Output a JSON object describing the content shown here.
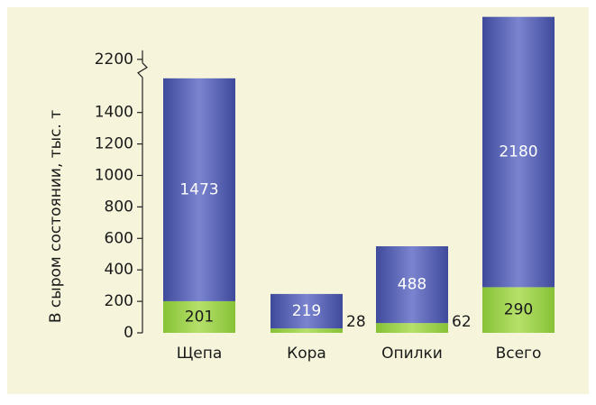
{
  "chart_data": {
    "type": "bar",
    "stacked": true,
    "y_label": "В сыром состоянии, тыс. т",
    "categories": [
      "Щепа",
      "Кора",
      "Опилки",
      "Всего"
    ],
    "series": [
      {
        "color": "#97cf45",
        "values": [
          201,
          28,
          62,
          290
        ]
      },
      {
        "color": "#5560b0",
        "values": [
          1473,
          219,
          488,
          2180
        ]
      }
    ],
    "ylim": [
      0,
      2200
    ],
    "yticks": [
      0,
      200,
      400,
      600,
      800,
      1000,
      1200,
      1400,
      2200
    ],
    "axis_break": [
      1600,
      2200
    ]
  }
}
